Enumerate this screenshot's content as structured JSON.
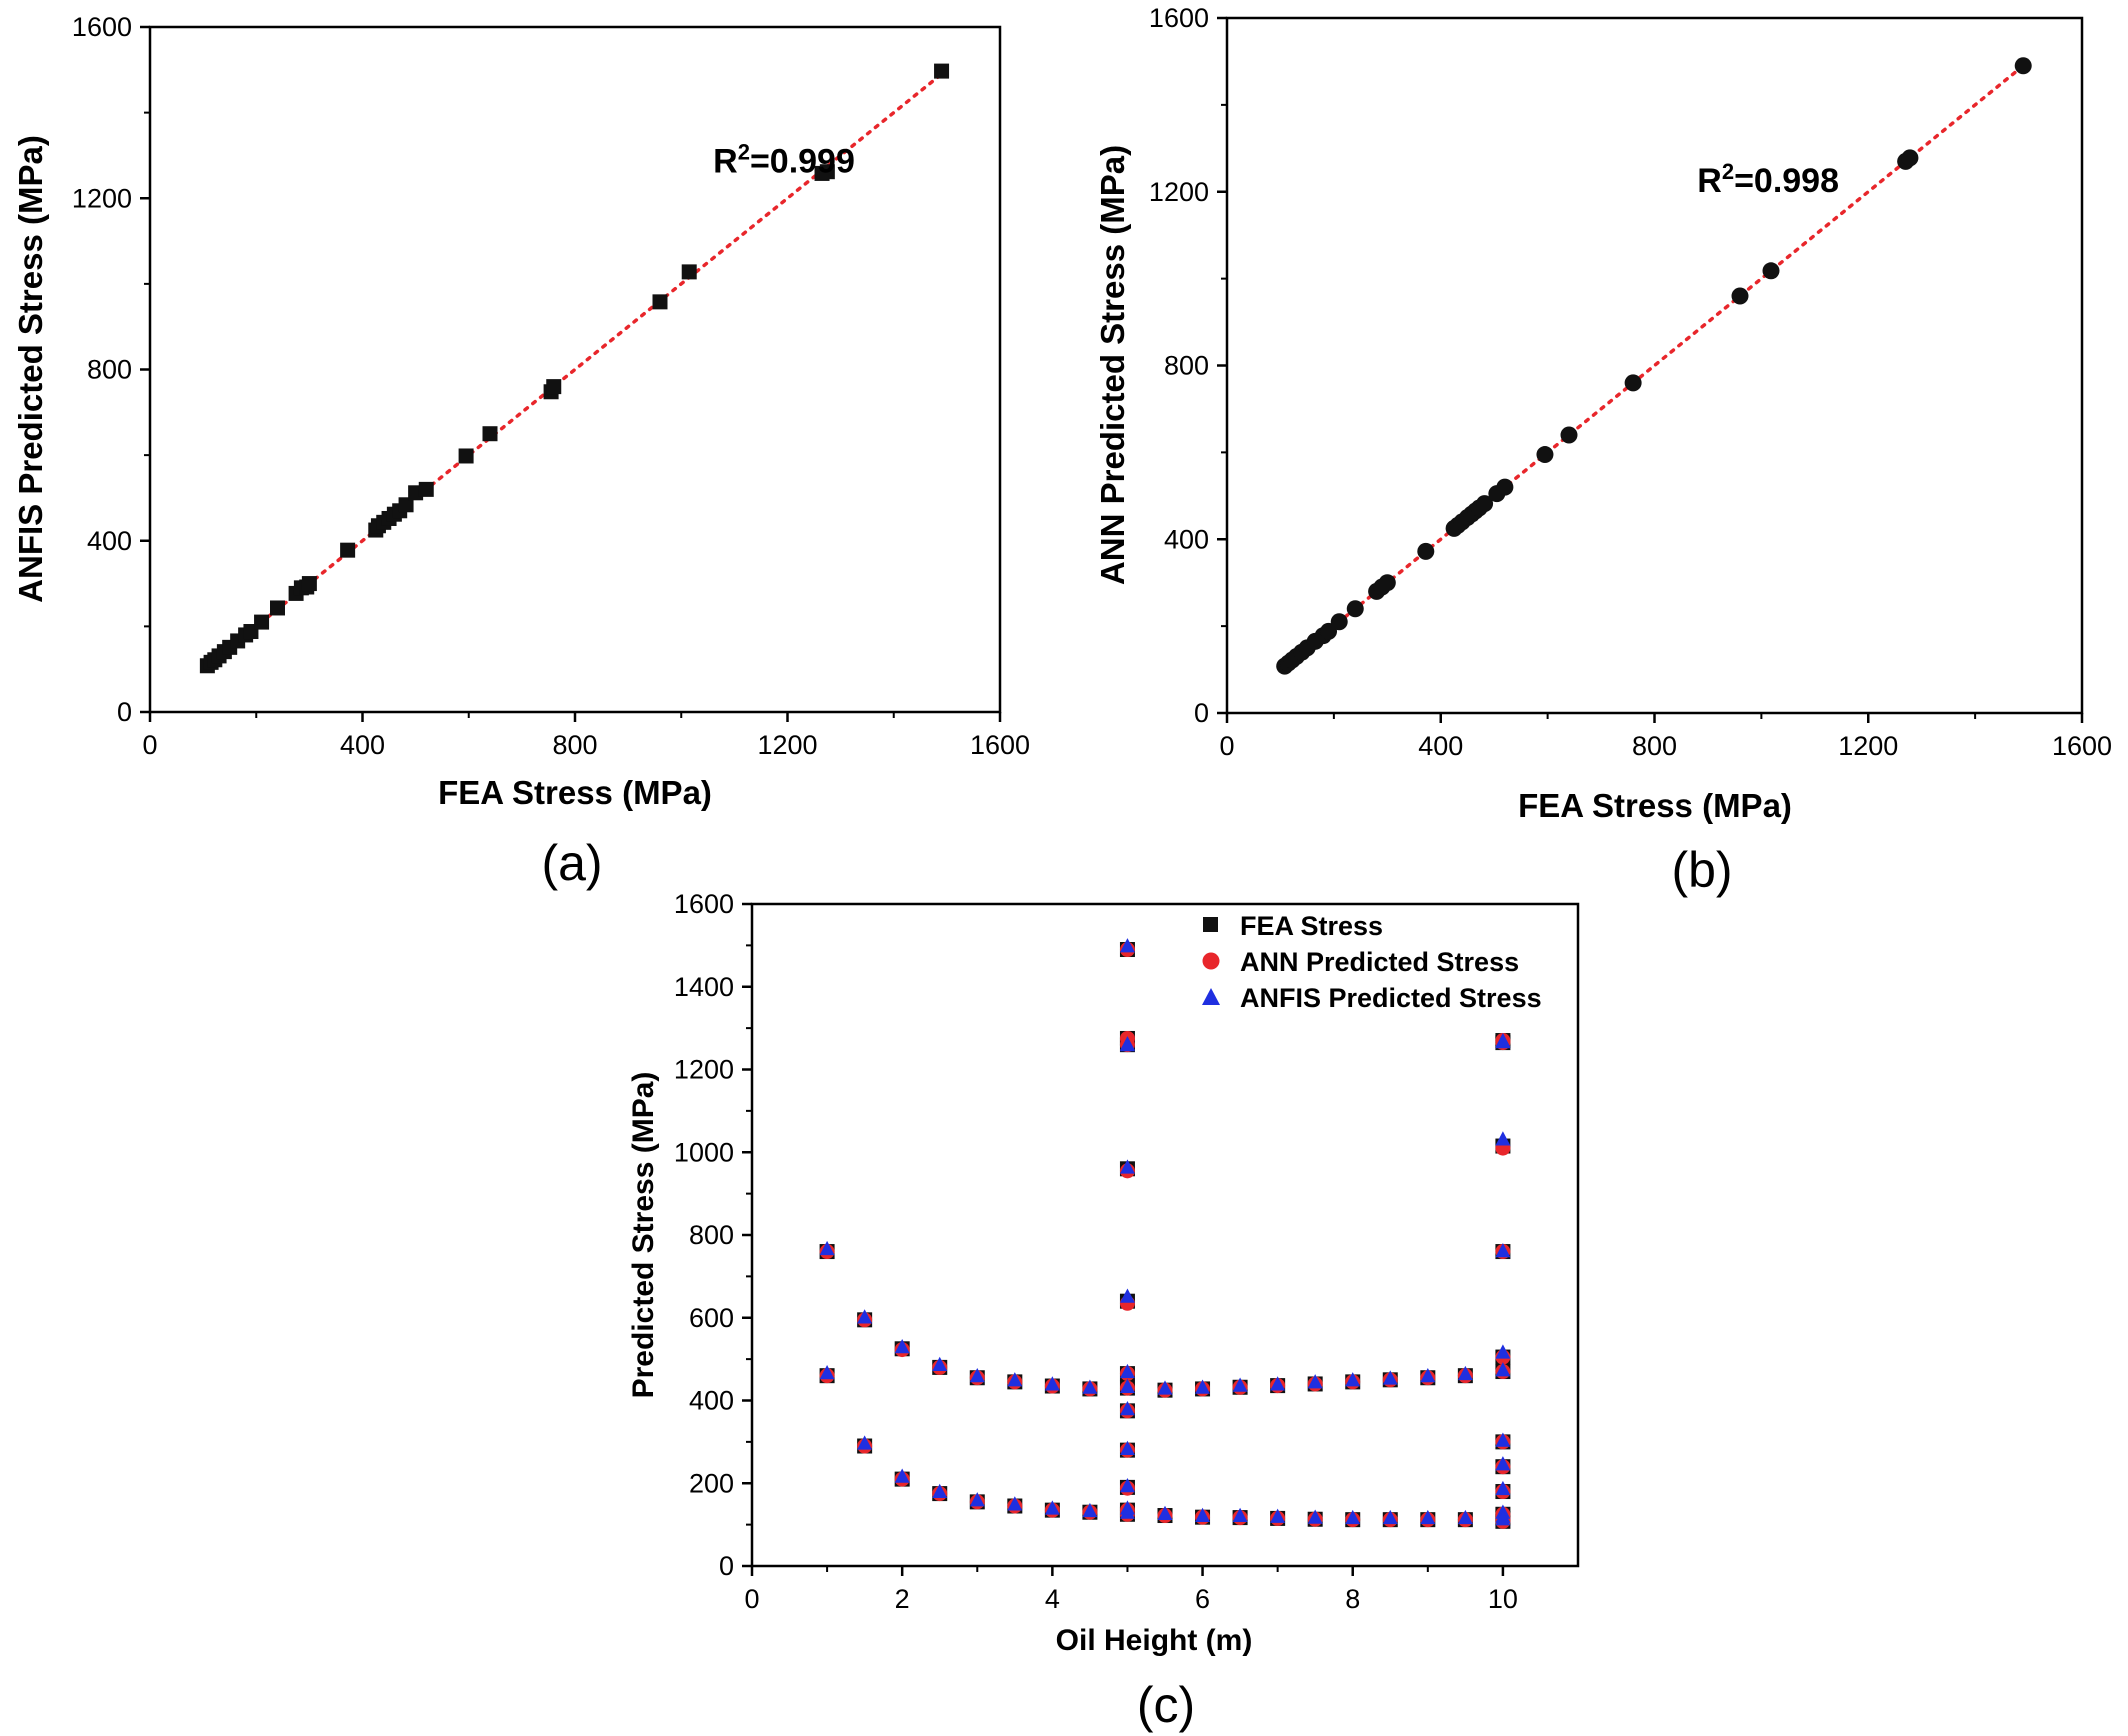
{
  "chart_data": [
    {
      "type": "scatter",
      "panel_label": "(a)",
      "xlabel": "FEA Stress (MPa)",
      "ylabel": "ANFIS Predicted Stress (MPa)",
      "xlim": [
        0,
        1600
      ],
      "ylim": [
        0,
        1600
      ],
      "xticks": [
        0,
        400,
        800,
        1200,
        1600
      ],
      "yticks": [
        0,
        400,
        800,
        1200,
        1600
      ],
      "annotation": {
        "base": "R",
        "sup": "2",
        "rest": "=0.999",
        "x": 1060,
        "y": 1260
      },
      "marker": "square",
      "fit_line": {
        "style": "dotted",
        "color": "#e8262b",
        "from": [
          105,
          105
        ],
        "to": [
          1490,
          1490
        ]
      },
      "x": [
        108,
        115,
        122,
        130,
        140,
        150,
        165,
        180,
        190,
        210,
        240,
        275,
        285,
        295,
        300,
        372,
        425,
        430,
        440,
        450,
        460,
        470,
        482,
        500,
        520,
        595,
        640,
        755,
        760,
        960,
        1015,
        1265,
        1275,
        1490
      ],
      "y": [
        108,
        116,
        122,
        131,
        141,
        151,
        166,
        180,
        188,
        210,
        243,
        277,
        290,
        292,
        300,
        378,
        425,
        435,
        443,
        452,
        462,
        470,
        484,
        512,
        520,
        598,
        650,
        748,
        760,
        958,
        1028,
        1258,
        1262,
        1497
      ]
    },
    {
      "type": "scatter",
      "panel_label": "(b)",
      "xlabel": "FEA Stress (MPa)",
      "ylabel": "ANN Predicted Stress (MPa)",
      "xlim": [
        0,
        1600
      ],
      "ylim": [
        0,
        1600
      ],
      "xticks": [
        0,
        400,
        800,
        1200,
        1600
      ],
      "yticks": [
        0,
        400,
        800,
        1200,
        1600
      ],
      "annotation": {
        "base": "R",
        "sup": "2",
        "rest": "=0.998",
        "x": 880,
        "y": 1200
      },
      "marker": "circle",
      "fit_line": {
        "style": "dotted",
        "color": "#e8262b",
        "from": [
          105,
          105
        ],
        "to": [
          1490,
          1490
        ]
      },
      "x": [
        108,
        115,
        122,
        130,
        140,
        150,
        165,
        180,
        190,
        210,
        240,
        280,
        290,
        300,
        372,
        425,
        432,
        440,
        450,
        458,
        465,
        472,
        482,
        505,
        520,
        595,
        640,
        760,
        960,
        1018,
        1270,
        1278,
        1490
      ],
      "y": [
        108,
        115,
        122,
        130,
        140,
        150,
        165,
        178,
        188,
        210,
        240,
        280,
        290,
        300,
        372,
        425,
        432,
        440,
        450,
        458,
        465,
        472,
        482,
        505,
        520,
        595,
        640,
        760,
        960,
        1018,
        1270,
        1278,
        1490
      ]
    },
    {
      "type": "scatter",
      "panel_label": "(c)",
      "xlabel": "Oil Height (m)",
      "ylabel": "Predicted Stress (MPa)",
      "xlim": [
        0,
        11
      ],
      "ylim": [
        0,
        1600
      ],
      "xticks": [
        0,
        2,
        4,
        6,
        8,
        10
      ],
      "yticks": [
        0,
        200,
        400,
        600,
        800,
        1000,
        1200,
        1400,
        1600
      ],
      "legend_placement": "top-right",
      "x": [
        1,
        1,
        1.5,
        1.5,
        2,
        2,
        2.5,
        2.5,
        3,
        3,
        3.5,
        3.5,
        4,
        4,
        4.5,
        4.5,
        5,
        5,
        5,
        5,
        5,
        5,
        5,
        5,
        5,
        5,
        5,
        5,
        5.5,
        5.5,
        6,
        6,
        6.5,
        6.5,
        7,
        7,
        7.5,
        7.5,
        8,
        8,
        8.5,
        8.5,
        9,
        9,
        9.5,
        9.5,
        10,
        10,
        10,
        10,
        10,
        10,
        10,
        10,
        10,
        10,
        10,
        10
      ],
      "series": [
        {
          "name": "FEA Stress",
          "marker": "square",
          "color": "#111111",
          "values": [
            760,
            460,
            595,
            290,
            525,
            210,
            480,
            175,
            455,
            155,
            445,
            145,
            435,
            135,
            428,
            130,
            1490,
            1275,
            1260,
            960,
            640,
            465,
            430,
            375,
            280,
            190,
            125,
            135,
            425,
            122,
            428,
            118,
            432,
            117,
            436,
            115,
            440,
            113,
            445,
            112,
            450,
            112,
            455,
            112,
            460,
            112,
            1270,
            1265,
            1015,
            760,
            505,
            470,
            300,
            240,
            180,
            125,
            115,
            108
          ]
        },
        {
          "name": "ANN Predicted Stress",
          "marker": "circle",
          "color": "#e8262b",
          "values": [
            760,
            460,
            595,
            290,
            523,
            210,
            480,
            175,
            455,
            155,
            445,
            145,
            435,
            135,
            428,
            130,
            1490,
            1275,
            1260,
            955,
            635,
            465,
            430,
            375,
            280,
            188,
            125,
            135,
            425,
            122,
            428,
            118,
            432,
            117,
            436,
            115,
            440,
            113,
            445,
            112,
            450,
            112,
            455,
            112,
            460,
            112,
            1270,
            1265,
            1010,
            760,
            505,
            470,
            300,
            240,
            180,
            125,
            115,
            108
          ]
        },
        {
          "name": "ANFIS Predicted Stress",
          "marker": "triangle",
          "color": "#1f2fe0",
          "values": [
            765,
            465,
            600,
            295,
            528,
            215,
            485,
            178,
            458,
            158,
            448,
            148,
            438,
            138,
            430,
            132,
            1497,
            1260,
            1258,
            962,
            650,
            468,
            432,
            378,
            282,
            192,
            128,
            138,
            428,
            125,
            430,
            120,
            435,
            120,
            438,
            118,
            443,
            116,
            448,
            115,
            452,
            115,
            458,
            115,
            463,
            115,
            1268,
            1265,
            1030,
            760,
            515,
            472,
            302,
            245,
            185,
            128,
            118,
            112
          ]
        }
      ]
    }
  ]
}
